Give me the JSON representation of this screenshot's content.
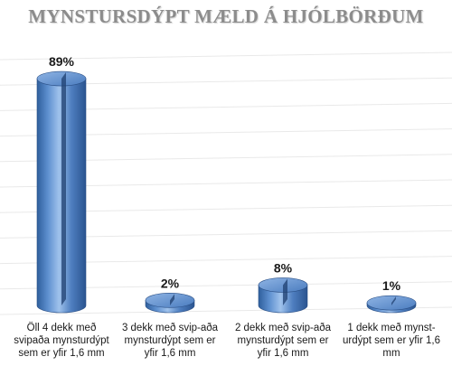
{
  "chart_data": {
    "type": "bar",
    "title": "MYNSTURSDÝPT MÆLD Á HJÓLBÖRÐUM",
    "categories": [
      "Öll 4 dekk með svipaða mynsturdýpt sem er yfir 1,6 mm",
      "3 dekk með svip-aða mynsturdýpt sem er yfir 1,6 mm",
      "2 dekk með svip-aða mynsturdýpt sem er yfir 1,6 mm",
      "1 dekk með mynst-urdýpt sem er yfir 1,6 mm"
    ],
    "values": [
      89,
      2,
      8,
      1
    ],
    "data_labels": [
      "89%",
      "2%",
      "8%",
      "1%"
    ],
    "ylim": [
      0,
      100
    ],
    "grid": true,
    "legend": "none",
    "bar_color": "#3f72b5"
  }
}
